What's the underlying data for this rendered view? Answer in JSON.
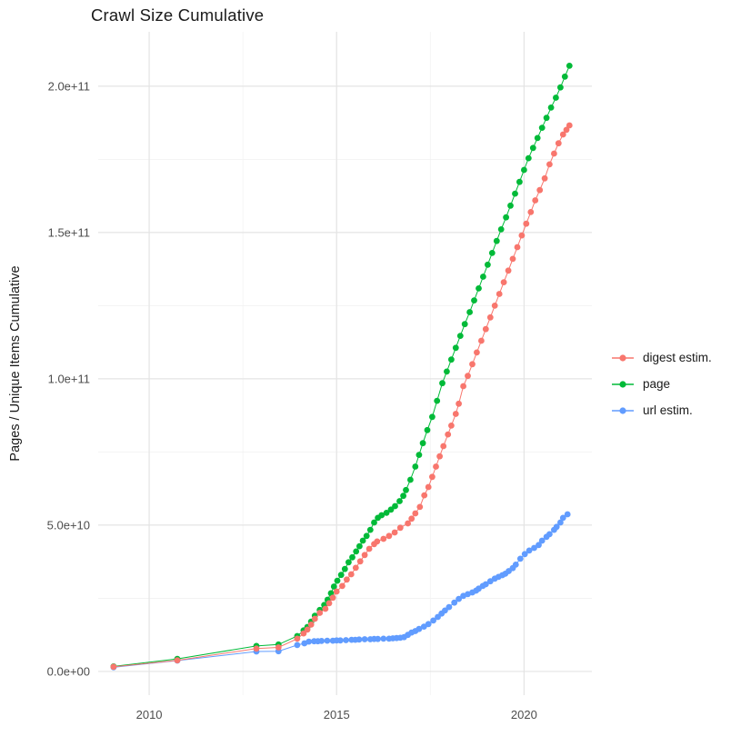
{
  "chart_data": {
    "type": "scatter",
    "title": "Crawl Size Cumulative",
    "xlabel": "",
    "ylabel": "Pages / Unique Items Cumulative",
    "legend_position": "right",
    "grid": "on",
    "background": "#ffffff",
    "grid_major_color": "#e4e4e4",
    "grid_minor_color": "#f1f1f1",
    "x_domain": [
      2008.64,
      2021.81
    ],
    "y_domain_e9": [
      -8.1,
      218.6
    ],
    "y_unit_multiplier": 1000000000,
    "x_ticks": [
      {
        "v": 2010,
        "label": "2010"
      },
      {
        "v": 2015,
        "label": "2015"
      },
      {
        "v": 2020,
        "label": "2020"
      }
    ],
    "x_minor_ticks": [
      2012.5,
      2017.5
    ],
    "y_ticks": [
      {
        "v": 0,
        "label": "0.0e+00"
      },
      {
        "v": 50,
        "label": "5.0e+10"
      },
      {
        "v": 100,
        "label": "1.0e+11"
      },
      {
        "v": 150,
        "label": "1.5e+11"
      },
      {
        "v": 200,
        "label": "2.0e+11"
      }
    ],
    "y_minor_ticks": [
      25,
      75,
      125,
      175
    ],
    "series": [
      {
        "name": "digest estim.",
        "color": "#F8766D",
        "points_year_value_e9": [
          [
            2009.05,
            1.6
          ],
          [
            2010.75,
            3.8
          ],
          [
            2012.86,
            7.8
          ],
          [
            2013.45,
            8.2
          ],
          [
            2013.95,
            11.2
          ],
          [
            2014.12,
            13.0
          ],
          [
            2014.22,
            14.3
          ],
          [
            2014.32,
            16.0
          ],
          [
            2014.42,
            18.0
          ],
          [
            2014.55,
            20.0
          ],
          [
            2014.7,
            21.4
          ],
          [
            2014.8,
            23.3
          ],
          [
            2014.9,
            25.2
          ],
          [
            2015.0,
            27.3
          ],
          [
            2015.15,
            29.2
          ],
          [
            2015.27,
            31.4
          ],
          [
            2015.39,
            33.2
          ],
          [
            2015.51,
            35.4
          ],
          [
            2015.63,
            37.6
          ],
          [
            2015.75,
            39.8
          ],
          [
            2015.87,
            41.9
          ],
          [
            2016.0,
            43.5
          ],
          [
            2016.08,
            44.4
          ],
          [
            2016.25,
            45.3
          ],
          [
            2016.4,
            46.3
          ],
          [
            2016.55,
            47.5
          ],
          [
            2016.7,
            49.1
          ],
          [
            2016.9,
            50.6
          ],
          [
            2017.0,
            52.2
          ],
          [
            2017.1,
            54.0
          ],
          [
            2017.22,
            56.2
          ],
          [
            2017.34,
            60.2
          ],
          [
            2017.45,
            63.0
          ],
          [
            2017.55,
            66.5
          ],
          [
            2017.65,
            70.0
          ],
          [
            2017.75,
            73.5
          ],
          [
            2017.85,
            77.0
          ],
          [
            2017.97,
            81.0
          ],
          [
            2018.06,
            84.0
          ],
          [
            2018.18,
            88.0
          ],
          [
            2018.26,
            91.5
          ],
          [
            2018.38,
            97.5
          ],
          [
            2018.5,
            101.0
          ],
          [
            2018.62,
            105.0
          ],
          [
            2018.74,
            109.0
          ],
          [
            2018.86,
            113.0
          ],
          [
            2018.98,
            117.0
          ],
          [
            2019.1,
            121.0
          ],
          [
            2019.22,
            125.0
          ],
          [
            2019.34,
            129.0
          ],
          [
            2019.46,
            133.0
          ],
          [
            2019.58,
            137.0
          ],
          [
            2019.7,
            141.0
          ],
          [
            2019.82,
            145.0
          ],
          [
            2019.94,
            149.0
          ],
          [
            2020.06,
            153.0
          ],
          [
            2020.18,
            157.0
          ],
          [
            2020.3,
            161.0
          ],
          [
            2020.42,
            164.5
          ],
          [
            2020.55,
            168.5
          ],
          [
            2020.68,
            173.3
          ],
          [
            2020.8,
            177.0
          ],
          [
            2020.92,
            180.5
          ],
          [
            2021.04,
            183.5
          ],
          [
            2021.13,
            185.1
          ],
          [
            2021.21,
            186.6
          ]
        ]
      },
      {
        "name": "page",
        "color": "#00BA38",
        "points_year_value_e9": [
          [
            2009.05,
            1.7
          ],
          [
            2010.75,
            4.3
          ],
          [
            2012.86,
            8.7
          ],
          [
            2013.45,
            9.2
          ],
          [
            2013.95,
            12.1
          ],
          [
            2014.12,
            14.0
          ],
          [
            2014.22,
            15.2
          ],
          [
            2014.32,
            17.0
          ],
          [
            2014.42,
            19.0
          ],
          [
            2014.55,
            21.0
          ],
          [
            2014.67,
            22.7
          ],
          [
            2014.76,
            24.5
          ],
          [
            2014.85,
            26.7
          ],
          [
            2014.93,
            29.0
          ],
          [
            2015.02,
            31.0
          ],
          [
            2015.12,
            33.0
          ],
          [
            2015.22,
            35.0
          ],
          [
            2015.32,
            37.3
          ],
          [
            2015.42,
            39.0
          ],
          [
            2015.52,
            41.0
          ],
          [
            2015.61,
            42.8
          ],
          [
            2015.7,
            44.7
          ],
          [
            2015.8,
            46.3
          ],
          [
            2015.9,
            48.4
          ],
          [
            2016.0,
            50.9
          ],
          [
            2016.1,
            52.5
          ],
          [
            2016.2,
            53.4
          ],
          [
            2016.33,
            54.2
          ],
          [
            2016.45,
            55.3
          ],
          [
            2016.56,
            56.5
          ],
          [
            2016.68,
            58.2
          ],
          [
            2016.78,
            60.0
          ],
          [
            2016.85,
            62.0
          ],
          [
            2016.97,
            65.5
          ],
          [
            2017.1,
            70.0
          ],
          [
            2017.2,
            74.0
          ],
          [
            2017.3,
            78.0
          ],
          [
            2017.42,
            82.5
          ],
          [
            2017.55,
            87.0
          ],
          [
            2017.68,
            92.5
          ],
          [
            2017.82,
            98.5
          ],
          [
            2017.94,
            102.5
          ],
          [
            2018.06,
            106.6
          ],
          [
            2018.18,
            110.6
          ],
          [
            2018.3,
            114.7
          ],
          [
            2018.42,
            118.7
          ],
          [
            2018.55,
            122.8
          ],
          [
            2018.67,
            126.8
          ],
          [
            2018.79,
            130.9
          ],
          [
            2018.91,
            134.9
          ],
          [
            2019.03,
            139.0
          ],
          [
            2019.15,
            143.0
          ],
          [
            2019.27,
            147.1
          ],
          [
            2019.39,
            151.1
          ],
          [
            2019.52,
            155.2
          ],
          [
            2019.64,
            159.2
          ],
          [
            2019.76,
            163.3
          ],
          [
            2019.88,
            167.3
          ],
          [
            2020.0,
            171.4
          ],
          [
            2020.12,
            175.4
          ],
          [
            2020.24,
            178.9
          ],
          [
            2020.36,
            182.3
          ],
          [
            2020.48,
            185.8
          ],
          [
            2020.6,
            189.2
          ],
          [
            2020.72,
            192.7
          ],
          [
            2020.85,
            196.1
          ],
          [
            2020.97,
            199.6
          ],
          [
            2021.09,
            203.3
          ],
          [
            2021.21,
            207.0
          ]
        ]
      },
      {
        "name": "url estim.",
        "color": "#619CFF",
        "points_year_value_e9": [
          [
            2009.05,
            1.4
          ],
          [
            2010.75,
            3.7
          ],
          [
            2012.86,
            6.8
          ],
          [
            2013.45,
            6.9
          ],
          [
            2013.95,
            9.0
          ],
          [
            2014.14,
            9.6
          ],
          [
            2014.26,
            10.2
          ],
          [
            2014.4,
            10.3
          ],
          [
            2014.5,
            10.3
          ],
          [
            2014.6,
            10.4
          ],
          [
            2014.75,
            10.5
          ],
          [
            2014.9,
            10.5
          ],
          [
            2015.0,
            10.6
          ],
          [
            2015.1,
            10.6
          ],
          [
            2015.25,
            10.7
          ],
          [
            2015.4,
            10.8
          ],
          [
            2015.5,
            10.8
          ],
          [
            2015.6,
            10.9
          ],
          [
            2015.75,
            11.0
          ],
          [
            2015.9,
            11.0
          ],
          [
            2016.0,
            11.1
          ],
          [
            2016.1,
            11.1
          ],
          [
            2016.25,
            11.2
          ],
          [
            2016.4,
            11.2
          ],
          [
            2016.5,
            11.3
          ],
          [
            2016.6,
            11.4
          ],
          [
            2016.7,
            11.5
          ],
          [
            2016.8,
            11.7
          ],
          [
            2016.9,
            12.5
          ],
          [
            2017.0,
            13.3
          ],
          [
            2017.1,
            13.8
          ],
          [
            2017.2,
            14.5
          ],
          [
            2017.33,
            15.3
          ],
          [
            2017.45,
            16.2
          ],
          [
            2017.58,
            17.4
          ],
          [
            2017.7,
            18.6
          ],
          [
            2017.8,
            19.8
          ],
          [
            2017.89,
            20.8
          ],
          [
            2018.0,
            22.0
          ],
          [
            2018.14,
            23.5
          ],
          [
            2018.26,
            24.8
          ],
          [
            2018.38,
            25.8
          ],
          [
            2018.5,
            26.4
          ],
          [
            2018.62,
            27.0
          ],
          [
            2018.72,
            27.6
          ],
          [
            2018.79,
            28.3
          ],
          [
            2018.9,
            29.2
          ],
          [
            2018.98,
            29.8
          ],
          [
            2019.1,
            30.8
          ],
          [
            2019.22,
            31.7
          ],
          [
            2019.32,
            32.3
          ],
          [
            2019.42,
            32.9
          ],
          [
            2019.5,
            33.4
          ],
          [
            2019.59,
            34.3
          ],
          [
            2019.7,
            35.3
          ],
          [
            2019.78,
            36.5
          ],
          [
            2019.9,
            38.5
          ],
          [
            2020.02,
            40.1
          ],
          [
            2020.14,
            41.3
          ],
          [
            2020.27,
            42.2
          ],
          [
            2020.39,
            43.2
          ],
          [
            2020.48,
            44.7
          ],
          [
            2020.6,
            46.0
          ],
          [
            2020.68,
            46.9
          ],
          [
            2020.8,
            48.4
          ],
          [
            2020.87,
            49.4
          ],
          [
            2020.97,
            50.9
          ],
          [
            2021.04,
            52.5
          ],
          [
            2021.16,
            53.7
          ]
        ]
      }
    ]
  }
}
